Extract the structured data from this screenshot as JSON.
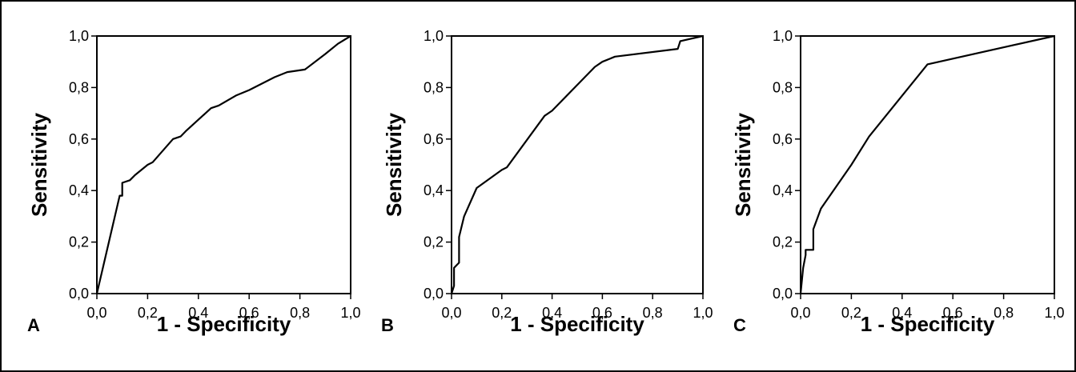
{
  "chart_data": [
    {
      "type": "line",
      "panel_label": "A",
      "xlabel": "1 - Specificity",
      "ylabel": "Sensitivity",
      "xlim": [
        0,
        1
      ],
      "ylim": [
        0,
        1
      ],
      "x_tick_labels": [
        "0,0",
        "0,2",
        "0,4",
        "0,6",
        "0,8",
        "1,0"
      ],
      "y_tick_labels": [
        "0,0",
        "0,2",
        "0,4",
        "0,6",
        "0,8",
        "1,0"
      ],
      "grid": false,
      "series": [
        {
          "x": [
            0,
            0.09,
            0.1,
            0.1,
            0.13,
            0.15,
            0.2,
            0.22,
            0.3,
            0.33,
            0.35,
            0.45,
            0.48,
            0.55,
            0.6,
            0.7,
            0.75,
            0.82,
            0.9,
            0.95,
            1.0
          ],
          "y": [
            0,
            0.38,
            0.38,
            0.43,
            0.44,
            0.46,
            0.5,
            0.51,
            0.6,
            0.61,
            0.63,
            0.72,
            0.73,
            0.77,
            0.79,
            0.84,
            0.86,
            0.87,
            0.93,
            0.97,
            1.0
          ]
        }
      ]
    },
    {
      "type": "line",
      "panel_label": "B",
      "xlabel": "1 - Specificity",
      "ylabel": "Sensitivity",
      "xlim": [
        0,
        1
      ],
      "ylim": [
        0,
        1
      ],
      "x_tick_labels": [
        "0,0",
        "0,2",
        "0,4",
        "0,6",
        "0,8",
        "1,0"
      ],
      "y_tick_labels": [
        "0,0",
        "0,2",
        "0,4",
        "0,6",
        "0,8",
        "1,0"
      ],
      "grid": false,
      "series": [
        {
          "x": [
            0,
            0.01,
            0.01,
            0.03,
            0.03,
            0.05,
            0.1,
            0.2,
            0.22,
            0.37,
            0.4,
            0.57,
            0.6,
            0.65,
            0.9,
            0.91,
            1.0
          ],
          "y": [
            0,
            0.03,
            0.1,
            0.12,
            0.22,
            0.3,
            0.41,
            0.48,
            0.49,
            0.69,
            0.71,
            0.88,
            0.9,
            0.92,
            0.95,
            0.98,
            1.0
          ]
        }
      ]
    },
    {
      "type": "line",
      "panel_label": "C",
      "xlabel": "1 - Specificity",
      "ylabel": "Sensitivity",
      "xlim": [
        0,
        1
      ],
      "ylim": [
        0,
        1
      ],
      "x_tick_labels": [
        "0,0",
        "0,2",
        "0,4",
        "0,6",
        "0,8",
        "1,0"
      ],
      "y_tick_labels": [
        "0,0",
        "0,2",
        "0,4",
        "0,6",
        "0,8",
        "1,0"
      ],
      "grid": false,
      "series": [
        {
          "x": [
            0,
            0.01,
            0.02,
            0.02,
            0.05,
            0.05,
            0.08,
            0.2,
            0.27,
            0.5,
            1.0
          ],
          "y": [
            0,
            0.1,
            0.15,
            0.17,
            0.17,
            0.25,
            0.33,
            0.5,
            0.61,
            0.89,
            1.0
          ]
        }
      ]
    }
  ]
}
